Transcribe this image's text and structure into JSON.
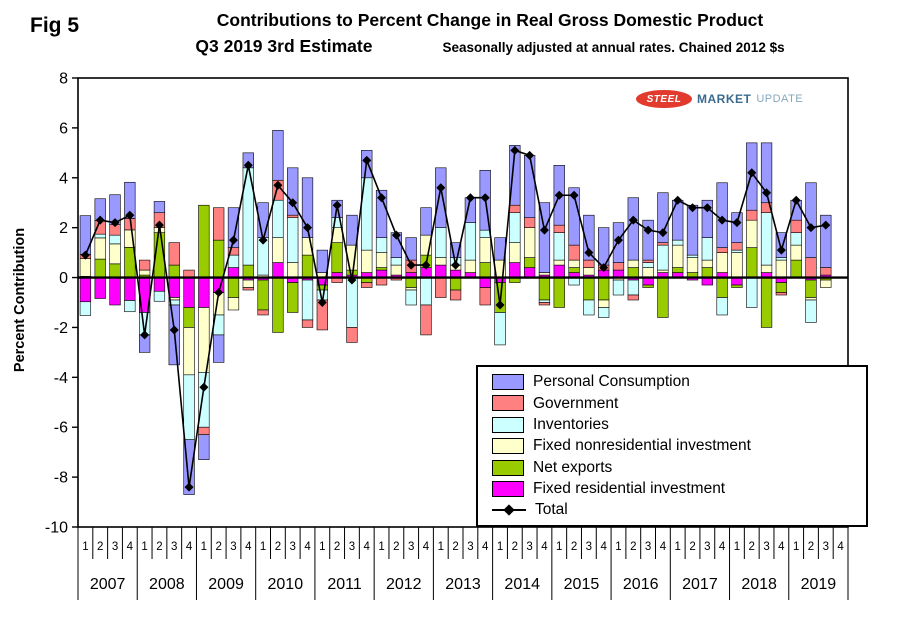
{
  "fig_label": "Fig 5",
  "header": {
    "title_line1": "Contributions to Percent Change in Real Gross Domestic Product",
    "title_line2": "Q3 2019 3rd Estimate",
    "note": "Seasonally adjusted at annual rates. Chained 2012 $s"
  },
  "logo": {
    "steel": "STEEL",
    "market": "MARKET",
    "update": "UPDATE"
  },
  "axes": {
    "ylabel": "Percent Contribution",
    "yticks": [
      8,
      6,
      4,
      2,
      0,
      -2,
      -4,
      -6,
      -8,
      -10
    ]
  },
  "legend": {
    "items": [
      {
        "label": "Personal Consumption",
        "color": "#9999FF"
      },
      {
        "label": "Government",
        "color": "#FF8080"
      },
      {
        "label": "Inventories",
        "color": "#CCFFFF"
      },
      {
        "label": "Fixed nonresidential investment",
        "color": "#FFFFCC"
      },
      {
        "label": "Net exports",
        "color": "#99CC00"
      },
      {
        "label": "Fixed residential investment",
        "color": "#FF00FF"
      },
      {
        "label": "Total",
        "color": "#000000",
        "marker": "line-diamond"
      }
    ]
  },
  "chart_data": {
    "type": "bar",
    "subtype": "stacked-bars-with-total-line",
    "title": "Contributions to Percent Change in Real Gross Domestic Product",
    "subtitle": "Q3 2019 3rd Estimate",
    "note": "Seasonally adjusted at annual rates. Chained 2012 $s",
    "ylabel": "Percent Contribution",
    "ylim": [
      -10,
      8
    ],
    "ytick_step": 2,
    "grid": false,
    "legend_position": "inside-lower-right",
    "years": [
      "2007",
      "2008",
      "2009",
      "2010",
      "2011",
      "2012",
      "2013",
      "2014",
      "2015",
      "2016",
      "2017",
      "2018",
      "2019"
    ],
    "quarters": [
      "1",
      "2",
      "3",
      "4"
    ],
    "n_quarters_plotted": 51,
    "stack_order_note": "stacked from axis outward: residential, net exports, nonresidential, inventories, government, personal consumption",
    "series": [
      {
        "name": "Personal Consumption",
        "color": "#9999FF",
        "values": [
          1.55,
          0.87,
          1.2,
          1.45,
          -0.7,
          0.45,
          -2.4,
          -2.2,
          -1.0,
          -1.1,
          1.6,
          0.6,
          1.4,
          2.0,
          1.9,
          2.4,
          0.9,
          0.7,
          1.2,
          1.1,
          1.9,
          1.0,
          0.9,
          1.1,
          2.4,
          0.6,
          1.0,
          2.4,
          0.9,
          2.4,
          2.5,
          2.8,
          2.4,
          2.3,
          1.8,
          1.5,
          1.6,
          2.5,
          1.6,
          2.0,
          1.6,
          2.0,
          1.5,
          2.6,
          1.2,
          2.7,
          2.4,
          1.0,
          0.8,
          3.0,
          2.1
        ]
      },
      {
        "name": "Government",
        "color": "#FF8080",
        "values": [
          0.17,
          0.55,
          0.42,
          0.46,
          0.4,
          0.6,
          0.9,
          0.3,
          -0.3,
          1.3,
          0.3,
          -0.1,
          -0.2,
          0.8,
          0.1,
          -0.3,
          -1.2,
          -0.2,
          -0.6,
          -0.2,
          -0.3,
          -0.1,
          0.5,
          -1.2,
          -0.8,
          -0.4,
          0.0,
          -0.7,
          0.0,
          0.3,
          0.4,
          -0.1,
          0.3,
          0.6,
          0.3,
          0.2,
          0.3,
          -0.2,
          0.1,
          0.1,
          0.0,
          0.0,
          0.0,
          0.2,
          0.3,
          0.4,
          0.4,
          -0.1,
          0.5,
          0.8,
          0.3
        ]
      },
      {
        "name": "Inventories",
        "color": "#CCFFFF",
        "values": [
          -0.55,
          0.15,
          0.35,
          -0.45,
          -0.9,
          -0.4,
          -0.2,
          -2.6,
          -2.2,
          -0.8,
          0.5,
          3.9,
          1.5,
          1.5,
          1.8,
          -1.6,
          -0.4,
          0.4,
          -2.0,
          2.9,
          0.6,
          0.3,
          -0.6,
          -1.1,
          1.2,
          0.3,
          1.5,
          0.3,
          -1.3,
          1.2,
          0.0,
          -0.1,
          1.1,
          -0.3,
          -0.6,
          -0.4,
          -0.6,
          -0.6,
          0.2,
          1.0,
          0.2,
          0.1,
          0.9,
          -0.7,
          0.1,
          -1.2,
          2.1,
          0.1,
          0.5,
          -0.9,
          0.0
        ]
      },
      {
        "name": "Fixed nonresidential investment",
        "color": "#FFFFCC",
        "values": [
          0.71,
          0.85,
          0.8,
          0.7,
          0.2,
          0.2,
          -0.1,
          -1.9,
          -2.6,
          -0.9,
          -0.5,
          -0.3,
          0.1,
          1.0,
          0.6,
          0.7,
          0.2,
          0.6,
          1.0,
          0.9,
          0.6,
          0.4,
          -0.1,
          0.8,
          0.3,
          0.2,
          0.5,
          1.0,
          0.7,
          0.8,
          1.2,
          0.1,
          0.2,
          0.3,
          0.3,
          -0.3,
          -0.1,
          0.3,
          0.4,
          0.1,
          0.9,
          0.6,
          0.3,
          0.8,
          1.0,
          1.1,
          0.3,
          0.7,
          0.6,
          -0.1,
          -0.3
        ]
      },
      {
        "name": "Net exports",
        "color": "#99CC00",
        "values": [
          0.05,
          0.74,
          0.55,
          1.21,
          0.1,
          1.8,
          0.5,
          -0.8,
          2.9,
          1.5,
          -0.8,
          0.5,
          -1.2,
          -2.2,
          -1.2,
          0.9,
          -0.2,
          1.2,
          0.2,
          -0.2,
          0.1,
          0.0,
          -0.4,
          0.5,
          0.0,
          -0.5,
          0.0,
          0.6,
          -1.2,
          -0.2,
          0.4,
          -0.9,
          -1.2,
          0.2,
          -0.9,
          -0.9,
          0.0,
          0.4,
          -0.1,
          -1.6,
          0.2,
          0.2,
          0.4,
          -0.8,
          -0.1,
          1.2,
          -2.0,
          -0.4,
          0.7,
          -0.7,
          -0.1
        ]
      },
      {
        "name": "Fixed residential investment",
        "color": "#FF00FF",
        "values": [
          -0.97,
          -0.84,
          -1.1,
          -0.92,
          -1.4,
          -0.55,
          -0.8,
          -1.2,
          -1.2,
          -0.6,
          0.4,
          -0.1,
          -0.1,
          0.6,
          -0.2,
          -0.1,
          -0.3,
          0.2,
          0.1,
          0.2,
          0.3,
          0.1,
          0.2,
          0.4,
          0.5,
          0.3,
          0.2,
          -0.4,
          -0.2,
          0.6,
          0.4,
          0.1,
          0.5,
          0.2,
          0.1,
          0.3,
          0.3,
          -0.1,
          -0.3,
          0.2,
          0.2,
          -0.1,
          -0.3,
          0.2,
          -0.3,
          0.0,
          0.2,
          -0.2,
          0.0,
          -0.1,
          0.1
        ]
      }
    ],
    "total": {
      "name": "Total",
      "color": "#000000",
      "values": [
        0.9,
        2.3,
        2.2,
        2.5,
        -2.3,
        2.1,
        -2.1,
        -8.4,
        -4.4,
        -0.6,
        1.5,
        4.5,
        1.5,
        3.7,
        3.0,
        2.0,
        -1.0,
        2.9,
        -0.1,
        4.7,
        3.2,
        1.7,
        0.5,
        0.5,
        3.6,
        0.5,
        3.2,
        3.2,
        -1.1,
        5.1,
        4.9,
        1.9,
        3.3,
        3.3,
        1.0,
        0.4,
        1.5,
        2.3,
        1.9,
        1.8,
        3.1,
        2.8,
        2.8,
        2.3,
        2.2,
        4.2,
        3.4,
        1.1,
        3.1,
        2.0,
        2.1
      ]
    }
  }
}
